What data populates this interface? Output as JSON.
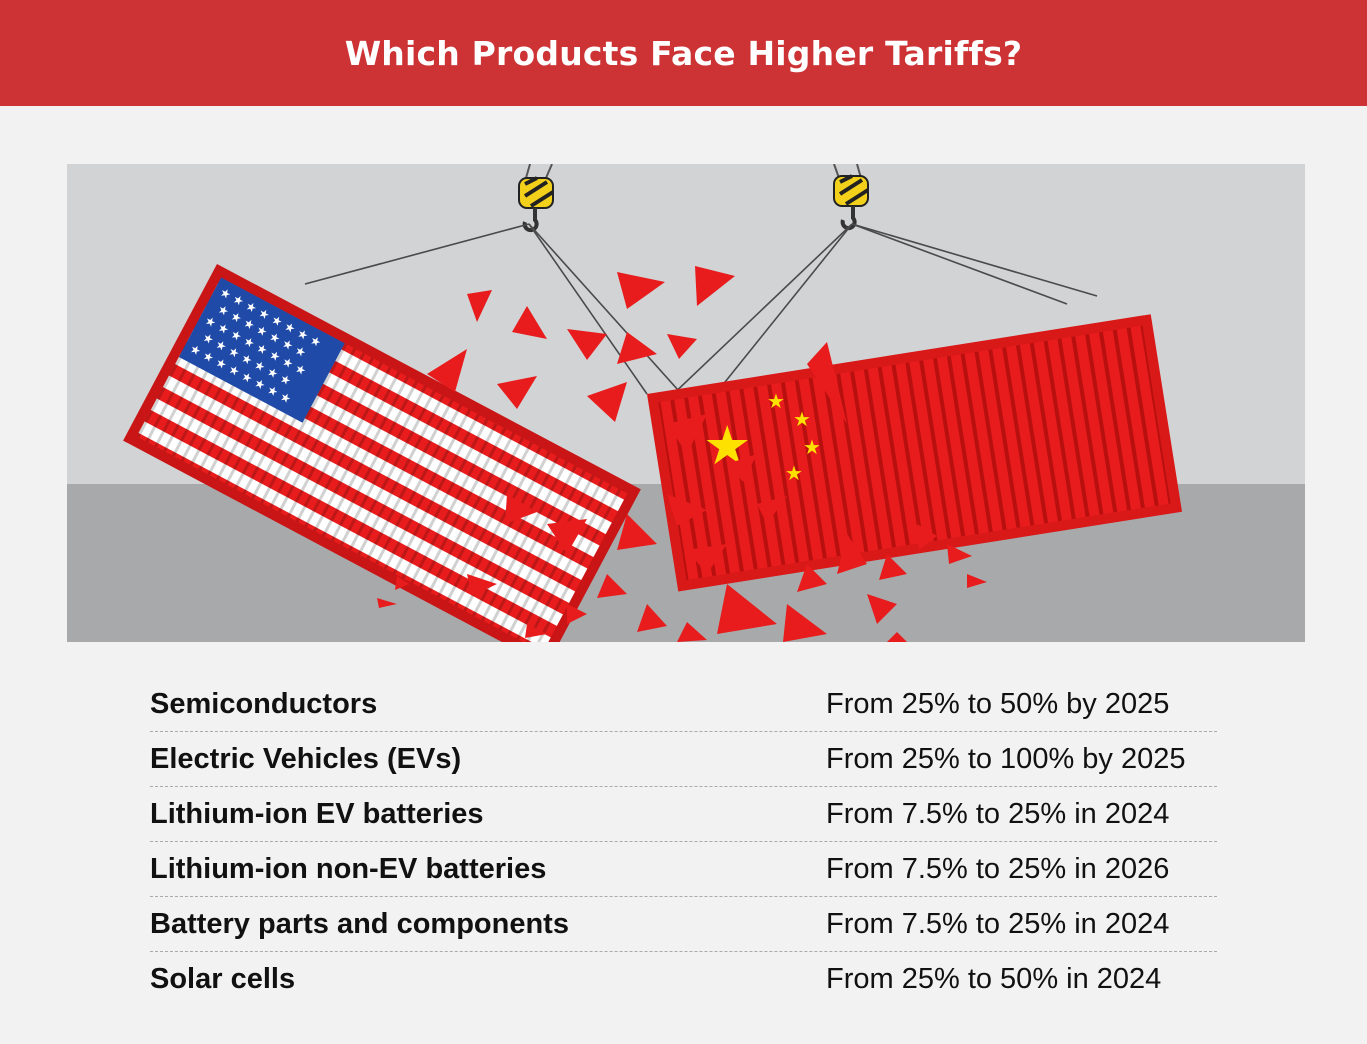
{
  "header": {
    "title": "Which Products Face Higher Tariffs?"
  },
  "illustration": {
    "subject": "us-china-container-collision",
    "colors": {
      "red": "#e81c1c",
      "wall": "#d2d3d5",
      "floor": "#a8a9ab",
      "blue": "#1f4aa8",
      "star": "#ffe100"
    }
  },
  "tariffs": {
    "rows": [
      {
        "product": "Semiconductors",
        "change": "From 25% to 50% by 2025"
      },
      {
        "product": "Electric Vehicles (EVs)",
        "change": "From 25% to 100% by 2025"
      },
      {
        "product": "Lithium-ion EV batteries",
        "change": "From 7.5% to 25% in 2024"
      },
      {
        "product": "Lithium-ion non-EV batteries",
        "change": "From 7.5% to 25% in 2026"
      },
      {
        "product": "Battery parts and components",
        "change": "From 7.5% to 25% in 2024"
      },
      {
        "product": "Solar cells",
        "change": "From 25% to 50% in 2024"
      }
    ]
  }
}
